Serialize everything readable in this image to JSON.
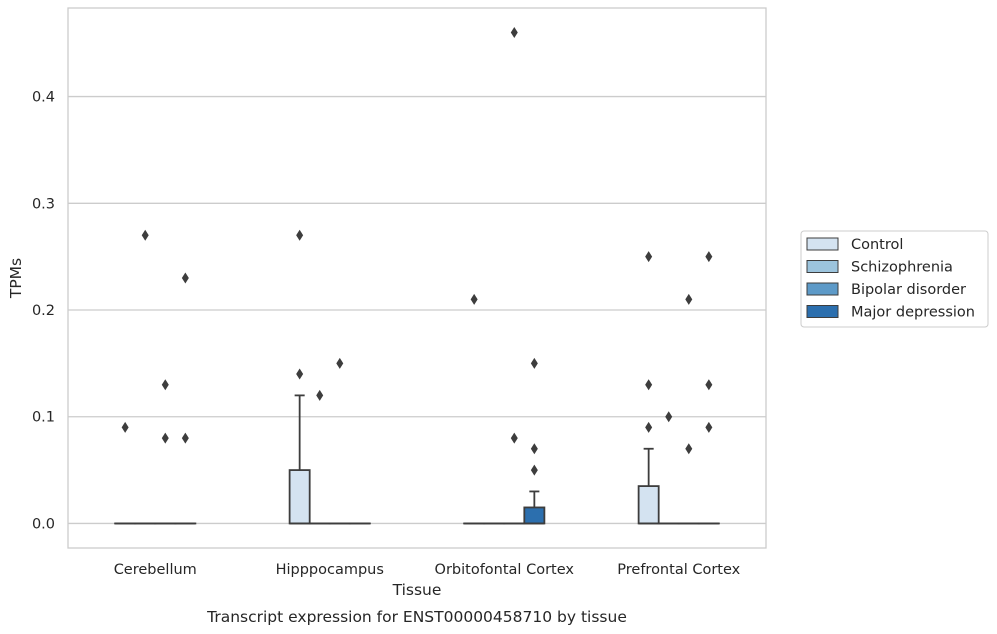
{
  "chart_data": {
    "type": "box",
    "xlabel": "Tissue",
    "ylabel": "TPMs",
    "caption": "Transcript expression for ENST00000458710 by tissue",
    "ylim": [
      -0.023,
      0.483
    ],
    "y_ticks": [
      0.0,
      0.1,
      0.2,
      0.3,
      0.4
    ],
    "y_tick_labels": [
      "0.0",
      "0.1",
      "0.2",
      "0.3",
      "0.4"
    ],
    "grid": "horizontal",
    "legend_position": "right",
    "categories": [
      "Cerebellum",
      "Hipppocampus",
      "Orbitofontal Cortex",
      "Prefrontal Cortex"
    ],
    "series": [
      {
        "name": "Control",
        "color": "#d4e3f1",
        "boxes": [
          {
            "q1": 0,
            "median": 0,
            "q3": 0,
            "whisker_low": 0,
            "whisker_high": 0,
            "outliers": [
              0.09
            ]
          },
          {
            "q1": 0,
            "median": 0,
            "q3": 0.05,
            "whisker_low": 0,
            "whisker_high": 0.12,
            "outliers": [
              0.27,
              0.14
            ]
          },
          {
            "q1": 0,
            "median": 0,
            "q3": 0,
            "whisker_low": 0,
            "whisker_high": 0,
            "outliers": [
              0.21
            ]
          },
          {
            "q1": 0,
            "median": 0,
            "q3": 0.035,
            "whisker_low": 0,
            "whisker_high": 0.07,
            "outliers": [
              0.25,
              0.13,
              0.09
            ]
          }
        ]
      },
      {
        "name": "Schizophrenia",
        "color": "#9cc4dd",
        "boxes": [
          {
            "q1": 0,
            "median": 0,
            "q3": 0,
            "whisker_low": 0,
            "whisker_high": 0,
            "outliers": [
              0.27
            ]
          },
          {
            "q1": 0,
            "median": 0,
            "q3": 0,
            "whisker_low": 0,
            "whisker_high": 0,
            "outliers": [
              0.12
            ]
          },
          {
            "q1": 0,
            "median": 0,
            "q3": 0,
            "whisker_low": 0,
            "whisker_high": 0,
            "outliers": []
          },
          {
            "q1": 0,
            "median": 0,
            "q3": 0,
            "whisker_low": 0,
            "whisker_high": 0,
            "outliers": [
              0.1
            ]
          }
        ]
      },
      {
        "name": "Bipolar disorder",
        "color": "#5d9ac8",
        "boxes": [
          {
            "q1": 0,
            "median": 0,
            "q3": 0,
            "whisker_low": 0,
            "whisker_high": 0,
            "outliers": [
              0.13,
              0.08
            ]
          },
          {
            "q1": 0,
            "median": 0,
            "q3": 0,
            "whisker_low": 0,
            "whisker_high": 0,
            "outliers": [
              0.15
            ]
          },
          {
            "q1": 0,
            "median": 0,
            "q3": 0,
            "whisker_low": 0,
            "whisker_high": 0,
            "outliers": [
              0.46,
              0.08
            ]
          },
          {
            "q1": 0,
            "median": 0,
            "q3": 0,
            "whisker_low": 0,
            "whisker_high": 0,
            "outliers": [
              0.21,
              0.07
            ]
          }
        ]
      },
      {
        "name": "Major depression",
        "color": "#2c6fae",
        "boxes": [
          {
            "q1": 0,
            "median": 0,
            "q3": 0,
            "whisker_low": 0,
            "whisker_high": 0,
            "outliers": [
              0.23,
              0.08
            ]
          },
          {
            "q1": 0,
            "median": 0,
            "q3": 0,
            "whisker_low": 0,
            "whisker_high": 0,
            "outliers": []
          },
          {
            "q1": 0,
            "median": 0,
            "q3": 0.015,
            "whisker_low": 0,
            "whisker_high": 0.03,
            "outliers": [
              0.15,
              0.07,
              0.05
            ]
          },
          {
            "q1": 0,
            "median": 0,
            "q3": 0,
            "whisker_low": 0,
            "whisker_high": 0,
            "outliers": [
              0.25,
              0.13,
              0.09
            ]
          }
        ]
      }
    ],
    "colors": {
      "frame": "#cccccc",
      "grid": "#cccccc",
      "box_edge": "#3d3d3d",
      "outlier": "#3d3d3d"
    }
  }
}
